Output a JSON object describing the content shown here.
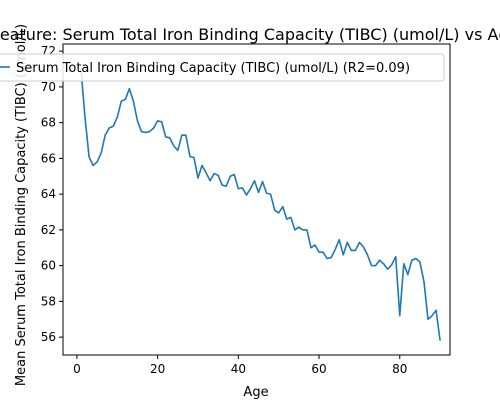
{
  "chart_data": {
    "type": "line",
    "title": "Feature: Serum Total Iron Binding Capacity (TIBC) (umol/L) vs Age",
    "xlabel": "Age",
    "ylabel": "Mean Serum Total Iron Binding Capacity (TIBC) (umol/L)",
    "xlim": [
      -3.45,
      92.45
    ],
    "ylim": [
      55.0,
      72.4
    ],
    "xticks": [
      0,
      20,
      40,
      60,
      80
    ],
    "yticks": [
      56,
      58,
      60,
      62,
      64,
      66,
      68,
      70,
      72
    ],
    "grid": false,
    "legend_position": "top-left",
    "series": [
      {
        "name": "Serum Total Iron Binding Capacity (TIBC) (umol/L) (R2=0.09)",
        "color": "#1f77b4",
        "x": [
          1,
          2,
          3,
          4,
          5,
          6,
          7,
          8,
          9,
          10,
          11,
          12,
          13,
          14,
          15,
          16,
          17,
          18,
          19,
          20,
          21,
          22,
          23,
          24,
          25,
          26,
          27,
          28,
          29,
          30,
          31,
          32,
          33,
          34,
          35,
          36,
          37,
          38,
          39,
          40,
          41,
          42,
          43,
          44,
          45,
          46,
          47,
          48,
          49,
          50,
          51,
          52,
          53,
          54,
          55,
          56,
          57,
          58,
          59,
          60,
          61,
          62,
          63,
          64,
          65,
          66,
          67,
          68,
          69,
          70,
          71,
          72,
          73,
          74,
          75,
          76,
          77,
          78,
          79,
          80,
          81,
          82,
          83,
          84,
          85,
          86,
          87,
          88,
          89,
          90
        ],
        "y": [
          71.0,
          68.3,
          66.1,
          65.6,
          65.8,
          66.3,
          67.3,
          67.7,
          67.8,
          68.3,
          69.2,
          69.3,
          69.9,
          69.2,
          68.1,
          67.5,
          67.45,
          67.5,
          67.7,
          68.1,
          68.05,
          67.2,
          67.15,
          66.7,
          66.45,
          67.3,
          67.3,
          66.1,
          66.05,
          64.9,
          65.6,
          65.2,
          64.75,
          65.15,
          65.05,
          64.5,
          64.45,
          65.0,
          65.1,
          64.3,
          64.35,
          63.95,
          64.3,
          64.75,
          64.1,
          64.7,
          64.05,
          64.0,
          63.1,
          62.95,
          63.3,
          62.6,
          62.7,
          62.0,
          62.15,
          62.0,
          62.0,
          61.0,
          61.15,
          60.75,
          60.75,
          60.4,
          60.45,
          60.9,
          61.45,
          60.6,
          61.3,
          60.85,
          60.85,
          61.3,
          61.05,
          60.6,
          60.0,
          60.0,
          60.3,
          60.1,
          59.8,
          60.05,
          60.5,
          57.2,
          60.1,
          59.5,
          60.3,
          60.4,
          60.2,
          59.1,
          57.0,
          57.2,
          57.5,
          55.8
        ]
      }
    ]
  }
}
